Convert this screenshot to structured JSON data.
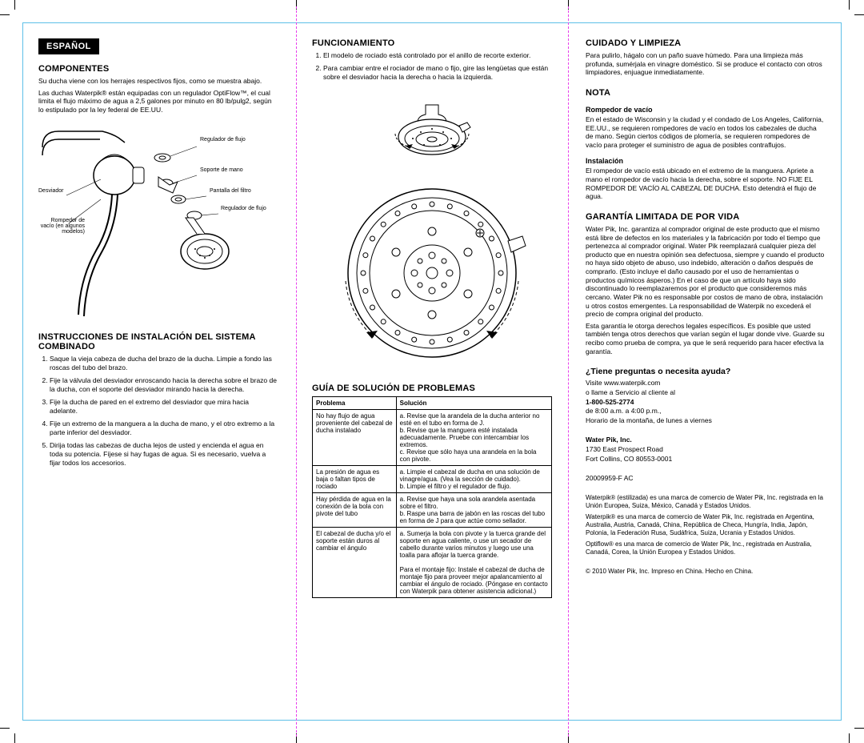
{
  "lang_badge": "ESPAÑOL",
  "col1": {
    "h_components": "COMPONENTES",
    "p1": "Su ducha viene con los herrajes respectivos fijos, como se muestra abajo.",
    "p2": "Las duchas Waterpik® están equipadas con un regulador OptiFlow™, el cual limita el flujo máximo de agua a 2,5 galones por minuto en 80 lb/pulg2, según lo estipulado por la ley federal de EE.UU.",
    "labels": {
      "regulador1": "Regulador de flujo",
      "soporte": "Soporte de mano",
      "desviador": "Desviador",
      "pantalla": "Pantalla del filtro",
      "regulador2": "Regulador de flujo",
      "rompedor": "Rompedor de vacío (en algunos modelos)"
    },
    "h_install": "INSTRUCCIONES DE INSTALACIÓN DEL SISTEMA COMBINADO",
    "install": [
      "Saque la vieja cabeza de ducha del brazo de la ducha. Limpie a fondo las roscas del tubo del brazo.",
      "Fije la válvula del desviador enroscando hacia la derecha sobre el brazo de la ducha, con el soporte del desviador mirando hacia la derecha.",
      "Fije la ducha de pared en el extremo del desviador que mira hacia adelante.",
      "Fije un extremo de la manguera a la ducha de mano, y el otro extremo a la parte inferior del desviador.",
      "Dirija todas las cabezas de ducha lejos de usted y encienda el agua en toda su potencia. Fíjese si hay fugas de agua. Si es necesario, vuelva a fijar todos los accesorios."
    ]
  },
  "col2": {
    "h_func": "FUNCIONAMIENTO",
    "func": [
      "El modelo de rociado está controlado por el anillo de recorte exterior.",
      "Para cambiar entre el rociador de mano o fijo, gire las lengüetas que están sobre el desviador hacia la derecha o hacia la izquierda."
    ],
    "h_trouble": "GUÍA DE SOLUCIÓN DE PROBLEMAS",
    "th_prob": "Problema",
    "th_sol": "Solución",
    "rows": [
      {
        "p": "No hay flujo de agua proveniente del cabezal de ducha instalado",
        "s": "a. Revise que la arandela de la ducha anterior no esté en el tubo en forma de J.\nb. Revise que la manguera esté instalada adecuadamente. Pruebe con intercambiar los extremos.\nc. Revise que sólo haya una arandela en la bola con pivote."
      },
      {
        "p": "La presión de agua es baja o faltan tipos de rociado",
        "s": "a. Limpie el cabezal de ducha en una solución de vinagre/agua. (Vea la sección de cuidado).\nb. Limpie el filtro y el regulador de flujo."
      },
      {
        "p": "Hay pérdida de agua en la conexión de la bola con pivote del tubo",
        "s": "a. Revise que haya una sola arandela asentada sobre el filtro.\nb. Raspe una barra de jabón en las roscas del tubo en forma de J para que actúe como sellador."
      },
      {
        "p": "El cabezal de ducha y/o el soporte están duros al cambiar el ángulo",
        "s": "a. Sumerja la bola con pivote y la tuerca grande del soporte en agua caliente, o use un secador de cabello durante varios minutos y luego use una toalla para aflojar la tuerca grande.\n\nPara el montaje fijo: Instale el cabezal de ducha de montaje fijo para proveer mejor apalancamiento al cambiar el ángulo de rociado. (Póngase en contacto con Waterpik para obtener asistencia adicional.)"
      }
    ]
  },
  "col3": {
    "h_care": "CUIDADO Y LIMPIEZA",
    "care_p": "Para pulirlo, hágalo con un paño suave húmedo. Para una limpieza más profunda, sumérjala en vinagre doméstico. Si se produce el contacto con otros limpiadores, enjuague inmediatamente.",
    "h_nota": "NOTA",
    "nota_h1": "Rompedor de vacío",
    "nota_p1": "En el estado de Wisconsin y la ciudad y el condado de Los Angeles, California, EE.UU., se requieren rompedores de vacío en todos los cabezales de ducha de mano. Según ciertos códigos de plomería, se requieren rompedores de vacío para proteger el suministro de agua de posibles contraflujos.",
    "nota_h2": "Instalación",
    "nota_p2": "El rompedor de vacío está ubicado en el extremo de la manguera. Apriete a mano el rompedor de vacío hacia la derecha, sobre el soporte. NO FIJE EL ROMPEDOR DE VACÍO AL CABEZAL DE DUCHA. Esto detendrá el flujo de agua.",
    "h_warranty": "GARANTÍA LIMITADA DE POR VIDA",
    "war_p1": "Water Pik, Inc. garantiza al comprador original de este producto que el mismo está libre de defectos en los materiales y la fabricación por todo el tiempo que pertenezca al comprador original. Water Pik reemplazará cualquier pieza del producto que en nuestra opinión sea defectuosa, siempre y cuando el producto no haya sido objeto de abuso, uso indebido, alteración o daños después de comprarlo. (Esto incluye el daño causado por el uso de herramientas o productos químicos ásperos.) En el caso de que un artículo haya sido discontinuado lo reemplazaremos por el producto que consideremos más cercano. Water Pik no es responsable por costos de mano de obra, instalación u otros costos emergentes. La responsabilidad de Waterpik no excederá el precio de compra original del producto.",
    "war_p2": "Esta garantía le otorga derechos legales específicos. Es posible que usted también tenga otros derechos que varían según el lugar donde vive. Guarde su recibo como prueba de compra, ya que le será requerido para hacer efectiva la garantía.",
    "help_title": "¿Tiene preguntas o necesita ayuda?",
    "help_l1": "Visite www.waterpik.com",
    "help_l2": "o llame a Servicio al cliente al",
    "help_phone": "1-800-525-2774",
    "help_hours1": "de 8:00 a.m. a 4:00 p.m.,",
    "help_hours2": "Horario de la montaña, de lunes a viernes",
    "company": "Water Pik, Inc.",
    "addr1": "1730 East Prospect Road",
    "addr2": "Fort Collins, CO 80553-0001",
    "code": "20009959-F AC",
    "tm1": "Waterpik® (estilizada) es una marca de comercio de Water Pik, Inc. registrada en la Unión Europea, Suiza, México, Canadá y Estados Unidos.",
    "tm2": "Waterpik® es una marca de comercio de Water Pik, Inc. registrada en Argentina, Australia, Austria, Canadá, China, República de Checa, Hungría, India, Japón, Polonia, la Federación Rusa, Sudáfrica, Suiza, Ucrania y Estados Unidos.",
    "tm3": "Optiflow® es una marca de comercio de Water Pik, Inc., registrada en Australia, Canadá, Corea, la Unión Europea y Estados Unidos.",
    "copyright": "© 2010 Water Pik, Inc.    Impreso en China.    Hecho en China."
  }
}
